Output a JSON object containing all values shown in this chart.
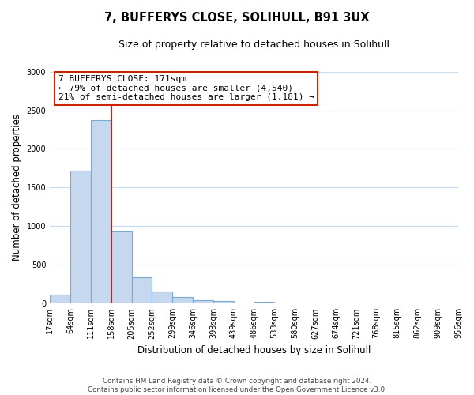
{
  "title": "7, BUFFERYS CLOSE, SOLIHULL, B91 3UX",
  "subtitle": "Size of property relative to detached houses in Solihull",
  "xlabel": "Distribution of detached houses by size in Solihull",
  "ylabel": "Number of detached properties",
  "bar_values": [
    120,
    1720,
    2370,
    930,
    340,
    155,
    80,
    45,
    30,
    0,
    25,
    0,
    0,
    0,
    0,
    0,
    0,
    0,
    0,
    0
  ],
  "bar_labels": [
    "17sqm",
    "64sqm",
    "111sqm",
    "158sqm",
    "205sqm",
    "252sqm",
    "299sqm",
    "346sqm",
    "393sqm",
    "439sqm",
    "486sqm",
    "533sqm",
    "580sqm",
    "627sqm",
    "674sqm",
    "721sqm",
    "768sqm",
    "815sqm",
    "862sqm",
    "909sqm",
    "956sqm"
  ],
  "bar_color": "#c5d8f0",
  "bar_edge_color": "#7aaad4",
  "annotation_line1": "7 BUFFERYS CLOSE: 171sqm",
  "annotation_line2": "← 79% of detached houses are smaller (4,540)",
  "annotation_line3": "21% of semi-detached houses are larger (1,181) →",
  "vline_color": "#cc2200",
  "ylim": [
    0,
    3000
  ],
  "yticks": [
    0,
    500,
    1000,
    1500,
    2000,
    2500,
    3000
  ],
  "footer_line1": "Contains HM Land Registry data © Crown copyright and database right 2024.",
  "footer_line2": "Contains public sector information licensed under the Open Government Licence v3.0.",
  "background_color": "#ffffff",
  "grid_color": "#c8d8ee"
}
